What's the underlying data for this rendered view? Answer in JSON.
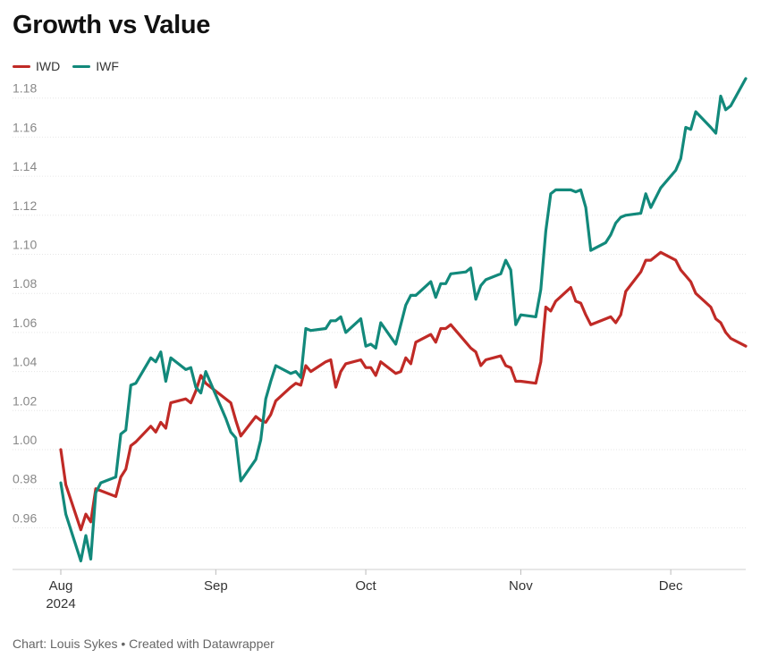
{
  "chart_data": {
    "type": "line",
    "title": "Growth vs Value",
    "source": "Chart: Louis Sykes • Created with Datawrapper",
    "xlabel": "",
    "ylabel": "",
    "ylim": [
      0.945,
      1.19
    ],
    "yticks": [
      "1.18",
      "1.16",
      "1.14",
      "1.12",
      "1.10",
      "1.08",
      "1.06",
      "1.04",
      "1.02",
      "1.00",
      "0.98",
      "0.96"
    ],
    "xticks": [
      {
        "date": "2024-08-01",
        "label": "Aug",
        "sublabel": "2024"
      },
      {
        "date": "2024-09-01",
        "label": "Sep",
        "sublabel": ""
      },
      {
        "date": "2024-10-01",
        "label": "Oct",
        "sublabel": ""
      },
      {
        "date": "2024-11-01",
        "label": "Nov",
        "sublabel": ""
      },
      {
        "date": "2024-12-01",
        "label": "Dec",
        "sublabel": ""
      }
    ],
    "grid": true,
    "legend_position": "top-left",
    "series": [
      {
        "name": "IWD",
        "color": "#c02a26",
        "points": [
          [
            "2024-08-01",
            1.0
          ],
          [
            "2024-08-02",
            0.982
          ],
          [
            "2024-08-05",
            0.959
          ],
          [
            "2024-08-06",
            0.967
          ],
          [
            "2024-08-07",
            0.963
          ],
          [
            "2024-08-08",
            0.98
          ],
          [
            "2024-08-12",
            0.976
          ],
          [
            "2024-08-13",
            0.986
          ],
          [
            "2024-08-14",
            0.99
          ],
          [
            "2024-08-15",
            1.002
          ],
          [
            "2024-08-16",
            1.004
          ],
          [
            "2024-08-19",
            1.012
          ],
          [
            "2024-08-20",
            1.009
          ],
          [
            "2024-08-21",
            1.014
          ],
          [
            "2024-08-22",
            1.011
          ],
          [
            "2024-08-23",
            1.024
          ],
          [
            "2024-08-26",
            1.026
          ],
          [
            "2024-08-27",
            1.024
          ],
          [
            "2024-08-28",
            1.03
          ],
          [
            "2024-08-29",
            1.038
          ],
          [
            "2024-08-30",
            1.034
          ],
          [
            "2024-09-03",
            1.026
          ],
          [
            "2024-09-04",
            1.024
          ],
          [
            "2024-09-05",
            1.015
          ],
          [
            "2024-09-06",
            1.007
          ],
          [
            "2024-09-09",
            1.017
          ],
          [
            "2024-09-10",
            1.015
          ],
          [
            "2024-09-11",
            1.014
          ],
          [
            "2024-09-12",
            1.018
          ],
          [
            "2024-09-13",
            1.025
          ],
          [
            "2024-09-16",
            1.032
          ],
          [
            "2024-09-17",
            1.034
          ],
          [
            "2024-09-18",
            1.033
          ],
          [
            "2024-09-19",
            1.043
          ],
          [
            "2024-09-20",
            1.04
          ],
          [
            "2024-09-23",
            1.045
          ],
          [
            "2024-09-24",
            1.046
          ],
          [
            "2024-09-25",
            1.032
          ],
          [
            "2024-09-26",
            1.04
          ],
          [
            "2024-09-27",
            1.044
          ],
          [
            "2024-09-30",
            1.046
          ],
          [
            "2024-10-01",
            1.042
          ],
          [
            "2024-10-02",
            1.042
          ],
          [
            "2024-10-03",
            1.038
          ],
          [
            "2024-10-04",
            1.045
          ],
          [
            "2024-10-07",
            1.039
          ],
          [
            "2024-10-08",
            1.04
          ],
          [
            "2024-10-09",
            1.047
          ],
          [
            "2024-10-10",
            1.044
          ],
          [
            "2024-10-11",
            1.055
          ],
          [
            "2024-10-14",
            1.059
          ],
          [
            "2024-10-15",
            1.055
          ],
          [
            "2024-10-16",
            1.062
          ],
          [
            "2024-10-17",
            1.062
          ],
          [
            "2024-10-18",
            1.064
          ],
          [
            "2024-10-21",
            1.055
          ],
          [
            "2024-10-22",
            1.052
          ],
          [
            "2024-10-23",
            1.05
          ],
          [
            "2024-10-24",
            1.043
          ],
          [
            "2024-10-25",
            1.046
          ],
          [
            "2024-10-28",
            1.048
          ],
          [
            "2024-10-29",
            1.043
          ],
          [
            "2024-10-30",
            1.042
          ],
          [
            "2024-10-31",
            1.035
          ],
          [
            "2024-11-01",
            1.035
          ],
          [
            "2024-11-04",
            1.034
          ],
          [
            "2024-11-05",
            1.045
          ],
          [
            "2024-11-06",
            1.073
          ],
          [
            "2024-11-07",
            1.071
          ],
          [
            "2024-11-08",
            1.076
          ],
          [
            "2024-11-11",
            1.083
          ],
          [
            "2024-11-12",
            1.076
          ],
          [
            "2024-11-13",
            1.075
          ],
          [
            "2024-11-14",
            1.069
          ],
          [
            "2024-11-15",
            1.064
          ],
          [
            "2024-11-18",
            1.067
          ],
          [
            "2024-11-19",
            1.068
          ],
          [
            "2024-11-20",
            1.065
          ],
          [
            "2024-11-21",
            1.069
          ],
          [
            "2024-11-22",
            1.081
          ],
          [
            "2024-11-25",
            1.091
          ],
          [
            "2024-11-26",
            1.097
          ],
          [
            "2024-11-27",
            1.097
          ],
          [
            "2024-11-29",
            1.101
          ],
          [
            "2024-12-02",
            1.097
          ],
          [
            "2024-12-03",
            1.092
          ],
          [
            "2024-12-04",
            1.089
          ],
          [
            "2024-12-05",
            1.086
          ],
          [
            "2024-12-06",
            1.08
          ],
          [
            "2024-12-09",
            1.073
          ],
          [
            "2024-12-10",
            1.067
          ],
          [
            "2024-12-11",
            1.065
          ],
          [
            "2024-12-12",
            1.06
          ],
          [
            "2024-12-13",
            1.057
          ],
          [
            "2024-12-16",
            1.053
          ]
        ]
      },
      {
        "name": "IWF",
        "color": "#12897b",
        "points": [
          [
            "2024-08-01",
            0.983
          ],
          [
            "2024-08-02",
            0.967
          ],
          [
            "2024-08-05",
            0.943
          ],
          [
            "2024-08-06",
            0.956
          ],
          [
            "2024-08-07",
            0.944
          ],
          [
            "2024-08-08",
            0.978
          ],
          [
            "2024-08-09",
            0.983
          ],
          [
            "2024-08-12",
            0.986
          ],
          [
            "2024-08-13",
            1.008
          ],
          [
            "2024-08-14",
            1.01
          ],
          [
            "2024-08-15",
            1.033
          ],
          [
            "2024-08-16",
            1.034
          ],
          [
            "2024-08-19",
            1.047
          ],
          [
            "2024-08-20",
            1.045
          ],
          [
            "2024-08-21",
            1.05
          ],
          [
            "2024-08-22",
            1.035
          ],
          [
            "2024-08-23",
            1.047
          ],
          [
            "2024-08-26",
            1.041
          ],
          [
            "2024-08-27",
            1.042
          ],
          [
            "2024-08-28",
            1.032
          ],
          [
            "2024-08-29",
            1.029
          ],
          [
            "2024-08-30",
            1.04
          ],
          [
            "2024-09-03",
            1.016
          ],
          [
            "2024-09-04",
            1.009
          ],
          [
            "2024-09-05",
            1.006
          ],
          [
            "2024-09-06",
            0.984
          ],
          [
            "2024-09-09",
            0.995
          ],
          [
            "2024-09-10",
            1.005
          ],
          [
            "2024-09-11",
            1.026
          ],
          [
            "2024-09-12",
            1.035
          ],
          [
            "2024-09-13",
            1.043
          ],
          [
            "2024-09-16",
            1.039
          ],
          [
            "2024-09-17",
            1.04
          ],
          [
            "2024-09-18",
            1.037
          ],
          [
            "2024-09-19",
            1.062
          ],
          [
            "2024-09-20",
            1.061
          ],
          [
            "2024-09-23",
            1.062
          ],
          [
            "2024-09-24",
            1.066
          ],
          [
            "2024-09-25",
            1.066
          ],
          [
            "2024-09-26",
            1.068
          ],
          [
            "2024-09-27",
            1.06
          ],
          [
            "2024-09-30",
            1.067
          ],
          [
            "2024-10-01",
            1.053
          ],
          [
            "2024-10-02",
            1.054
          ],
          [
            "2024-10-03",
            1.052
          ],
          [
            "2024-10-04",
            1.065
          ],
          [
            "2024-10-07",
            1.054
          ],
          [
            "2024-10-08",
            1.064
          ],
          [
            "2024-10-09",
            1.074
          ],
          [
            "2024-10-10",
            1.079
          ],
          [
            "2024-10-11",
            1.079
          ],
          [
            "2024-10-14",
            1.086
          ],
          [
            "2024-10-15",
            1.078
          ],
          [
            "2024-10-16",
            1.085
          ],
          [
            "2024-10-17",
            1.085
          ],
          [
            "2024-10-18",
            1.09
          ],
          [
            "2024-10-21",
            1.091
          ],
          [
            "2024-10-22",
            1.093
          ],
          [
            "2024-10-23",
            1.077
          ],
          [
            "2024-10-24",
            1.084
          ],
          [
            "2024-10-25",
            1.087
          ],
          [
            "2024-10-28",
            1.09
          ],
          [
            "2024-10-29",
            1.097
          ],
          [
            "2024-10-30",
            1.092
          ],
          [
            "2024-10-31",
            1.064
          ],
          [
            "2024-11-01",
            1.069
          ],
          [
            "2024-11-04",
            1.068
          ],
          [
            "2024-11-05",
            1.082
          ],
          [
            "2024-11-06",
            1.112
          ],
          [
            "2024-11-07",
            1.131
          ],
          [
            "2024-11-08",
            1.133
          ],
          [
            "2024-11-11",
            1.133
          ],
          [
            "2024-11-12",
            1.132
          ],
          [
            "2024-11-13",
            1.133
          ],
          [
            "2024-11-14",
            1.124
          ],
          [
            "2024-11-15",
            1.102
          ],
          [
            "2024-11-18",
            1.106
          ],
          [
            "2024-11-19",
            1.11
          ],
          [
            "2024-11-20",
            1.116
          ],
          [
            "2024-11-21",
            1.119
          ],
          [
            "2024-11-22",
            1.12
          ],
          [
            "2024-11-25",
            1.121
          ],
          [
            "2024-11-26",
            1.131
          ],
          [
            "2024-11-27",
            1.124
          ],
          [
            "2024-11-29",
            1.134
          ],
          [
            "2024-12-02",
            1.143
          ],
          [
            "2024-12-03",
            1.149
          ],
          [
            "2024-12-04",
            1.165
          ],
          [
            "2024-12-05",
            1.164
          ],
          [
            "2024-12-06",
            1.173
          ],
          [
            "2024-12-09",
            1.165
          ],
          [
            "2024-12-10",
            1.162
          ],
          [
            "2024-12-11",
            1.181
          ],
          [
            "2024-12-12",
            1.174
          ],
          [
            "2024-12-13",
            1.176
          ],
          [
            "2024-12-16",
            1.19
          ]
        ]
      }
    ]
  }
}
